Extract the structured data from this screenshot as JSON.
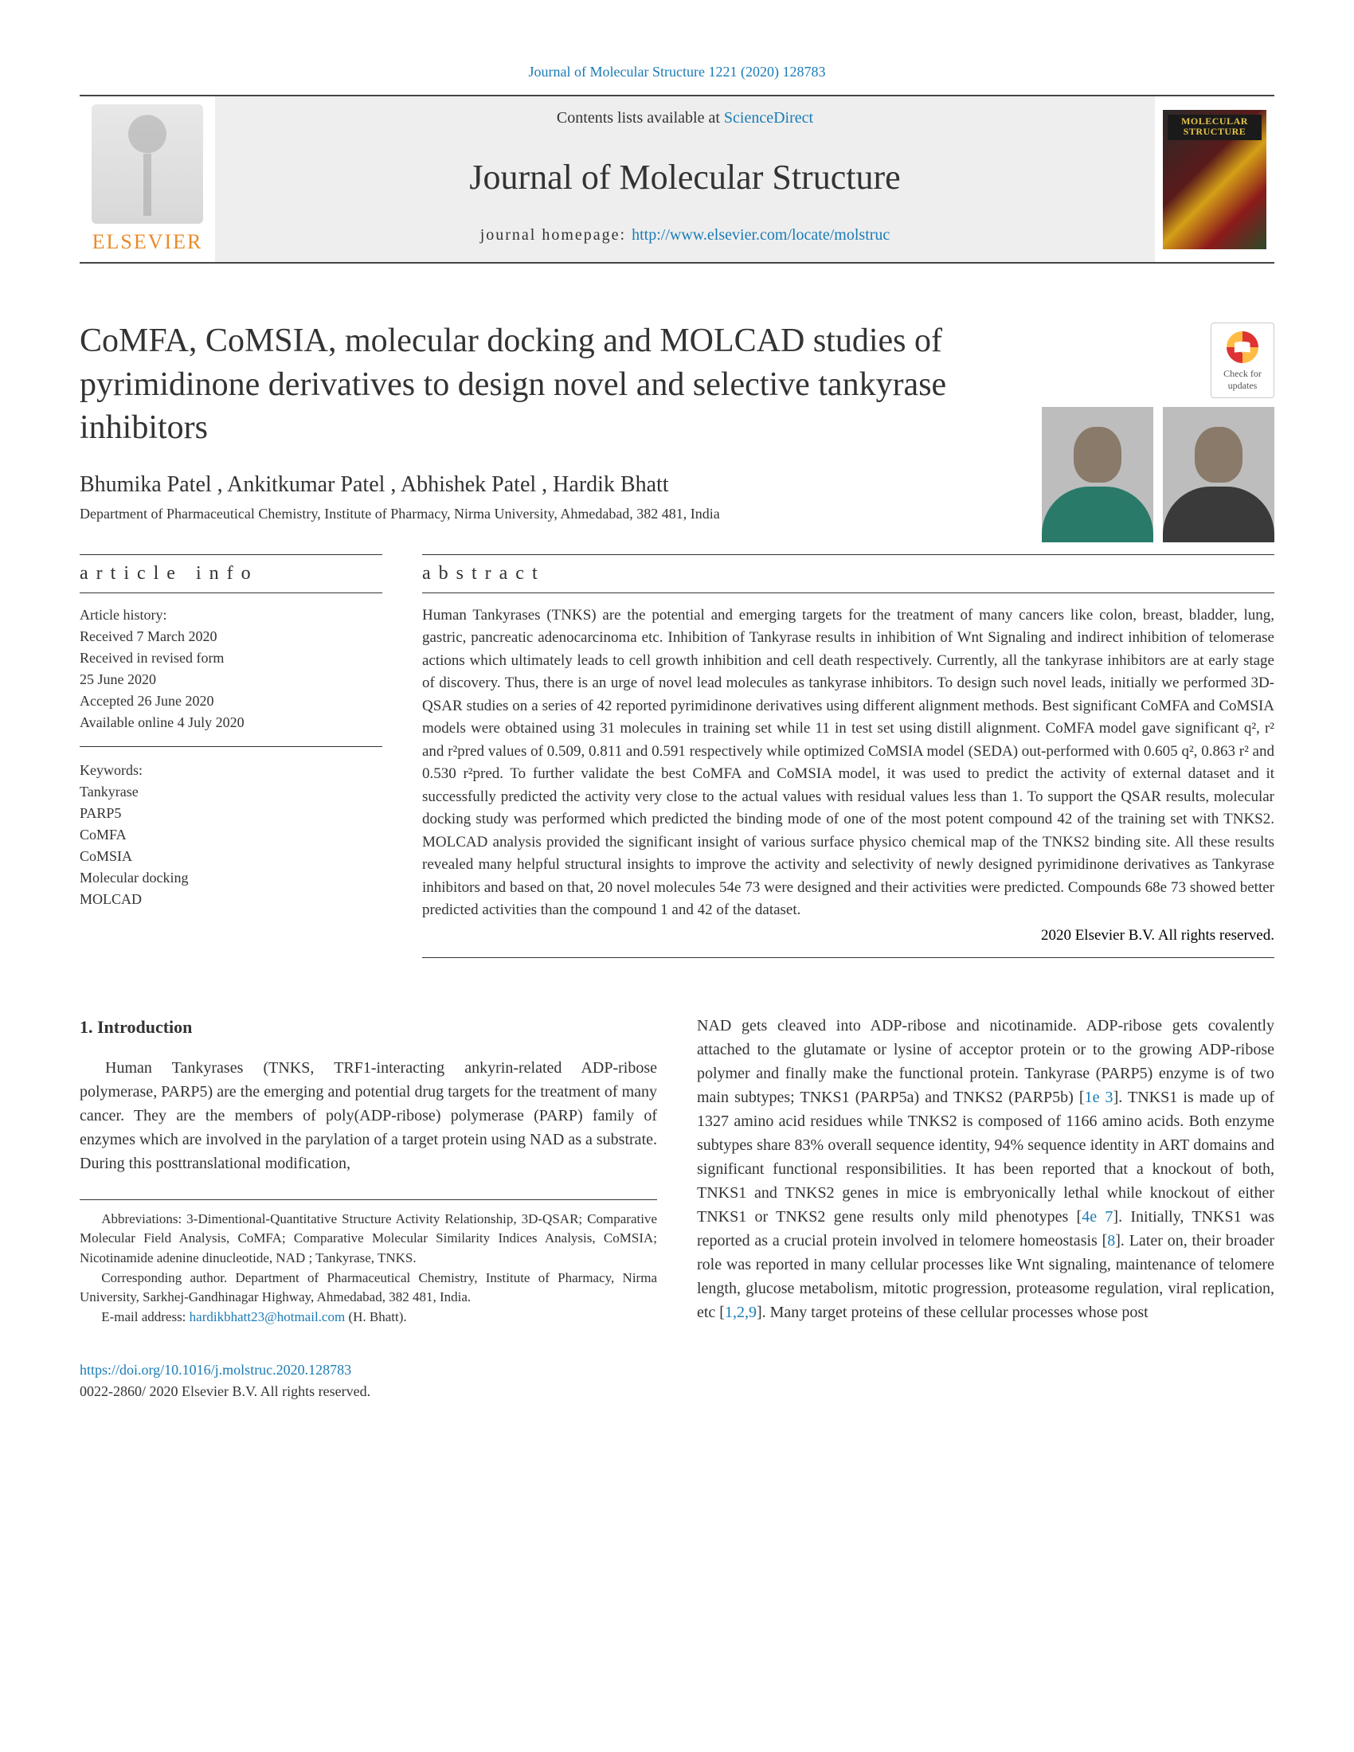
{
  "citation": "Journal of Molecular Structure 1221 (2020) 128783",
  "masthead": {
    "contents_prefix": "Contents lists available at ",
    "contents_link": "ScienceDirect",
    "journal_name": "Journal of Molecular Structure",
    "homepage_label": "journal homepage: ",
    "homepage_url": "http://www.elsevier.com/locate/molstruc",
    "publisher": "ELSEVIER",
    "cover_text": "MOLECULAR STRUCTURE"
  },
  "article": {
    "title": "CoMFA, CoMSIA, molecular docking and MOLCAD studies of pyrimidinone derivatives to design novel and selective tankyrase inhibitors",
    "check_updates": "Check for updates",
    "authors": "Bhumika Patel , Ankitkumar Patel , Abhishek Patel , Hardik Bhatt",
    "affiliation": "Department of Pharmaceutical Chemistry, Institute of Pharmacy, Nirma University, Ahmedabad, 382 481, India"
  },
  "article_info": {
    "heading": "article info",
    "history_lines": [
      "Article history:",
      "Received 7 March 2020",
      "Received in revised form",
      "25 June 2020",
      "Accepted 26 June 2020",
      "Available online 4 July 2020"
    ],
    "keywords_label": "Keywords:",
    "keywords": [
      "Tankyrase",
      "PARP5",
      "CoMFA",
      "CoMSIA",
      "Molecular docking",
      "MOLCAD"
    ]
  },
  "abstract": {
    "heading": "abstract",
    "text": "Human Tankyrases (TNKS) are the potential and emerging targets for the treatment of many cancers like colon, breast, bladder, lung, gastric, pancreatic adenocarcinoma etc. Inhibition of Tankyrase results in inhibition of Wnt Signaling and indirect inhibition of telomerase actions which ultimately leads to cell growth inhibition and cell death respectively. Currently, all the tankyrase inhibitors are at early stage of discovery. Thus, there is an urge of novel lead molecules as tankyrase inhibitors. To design such novel leads, initially we performed 3D-QSAR studies on a series of 42 reported pyrimidinone derivatives using different alignment methods. Best significant CoMFA and CoMSIA models were obtained using 31 molecules in training set while 11 in test set using distill alignment. CoMFA model gave significant q², r² and r²pred values of 0.509, 0.811 and 0.591 respectively while optimized CoMSIA model (SEDA) out-performed with 0.605 q², 0.863 r² and 0.530 r²pred. To further validate the best CoMFA and CoMSIA model, it was used to predict the activity of external dataset and it successfully predicted the activity very close to the actual values with residual values less than 1. To support the QSAR results, molecular docking study was performed which predicted the binding mode of one of the most potent compound 42 of the training set with TNKS2. MOLCAD analysis provided the significant insight of various surface physico chemical map of the TNKS2 binding site. All these results revealed many helpful structural insights to improve the activity and selectivity of newly designed pyrimidinone derivatives as Tankyrase inhibitors and based on that, 20 novel molecules 54e 73 were designed and their activities were predicted. Compounds 68e 73 showed better predicted activities than the compound 1 and 42 of the dataset.",
    "copyright": "2020 Elsevier B.V. All rights reserved."
  },
  "body": {
    "section_heading": "1.  Introduction",
    "col1_para": "Human Tankyrases (TNKS, TRF1-interacting ankyrin-related ADP-ribose polymerase, PARP5) are the emerging and potential drug targets for the treatment of many cancer. They are the members of poly(ADP-ribose) polymerase (PARP) family of enzymes which are involved in the parylation of a target protein using NAD  as a substrate. During this posttranslational modification,",
    "col2_para": "NAD  gets cleaved into ADP-ribose and nicotinamide. ADP-ribose gets covalently attached to the glutamate or lysine of acceptor protein or to the growing ADP-ribose polymer and finally make the functional protein. Tankyrase (PARP5) enzyme is of two main subtypes; TNKS1 (PARP5a) and TNKS2 (PARP5b) [1e 3]. TNKS1 is made up of 1327 amino acid residues while TNKS2 is composed of 1166 amino acids. Both enzyme subtypes share 83% overall sequence identity, 94% sequence identity in ART domains and significant functional responsibilities. It has been reported that a knockout of both, TNKS1 and TNKS2 genes in mice is embryonically lethal while knockout of either TNKS1 or TNKS2 gene results only mild phenotypes [4e 7]. Initially, TNKS1 was reported as a crucial protein involved in telomere homeostasis [8]. Later on, their broader role was reported in many cellular processes like Wnt signaling, maintenance of telomere length, glucose metabolism, mitotic progression, proteasome regulation, viral replication, etc [1,2,9]. Many target proteins of these cellular processes whose post"
  },
  "footnotes": {
    "abbrev": "Abbreviations: 3-Dimentional-Quantitative Structure Activity Relationship, 3D-QSAR; Comparative Molecular Field Analysis, CoMFA; Comparative Molecular Similarity Indices Analysis, CoMSIA; Nicotinamide adenine dinucleotide, NAD ; Tankyrase, TNKS.",
    "corresponding": "Corresponding author. Department of Pharmaceutical Chemistry, Institute of Pharmacy, Nirma University, Sarkhej-Gandhinagar Highway, Ahmedabad, 382 481, India.",
    "email_label": "E-mail address: ",
    "email": "hardikbhatt23@hotmail.com",
    "email_suffix": " (H. Bhatt)."
  },
  "doi": {
    "url": "https://doi.org/10.1016/j.molstruc.2020.128783",
    "issn_line": "0022-2860/   2020 Elsevier B.V. All rights reserved."
  },
  "colors": {
    "link": "#1a7bb5",
    "text": "#333333",
    "elsevier_orange": "#e98b2a"
  }
}
